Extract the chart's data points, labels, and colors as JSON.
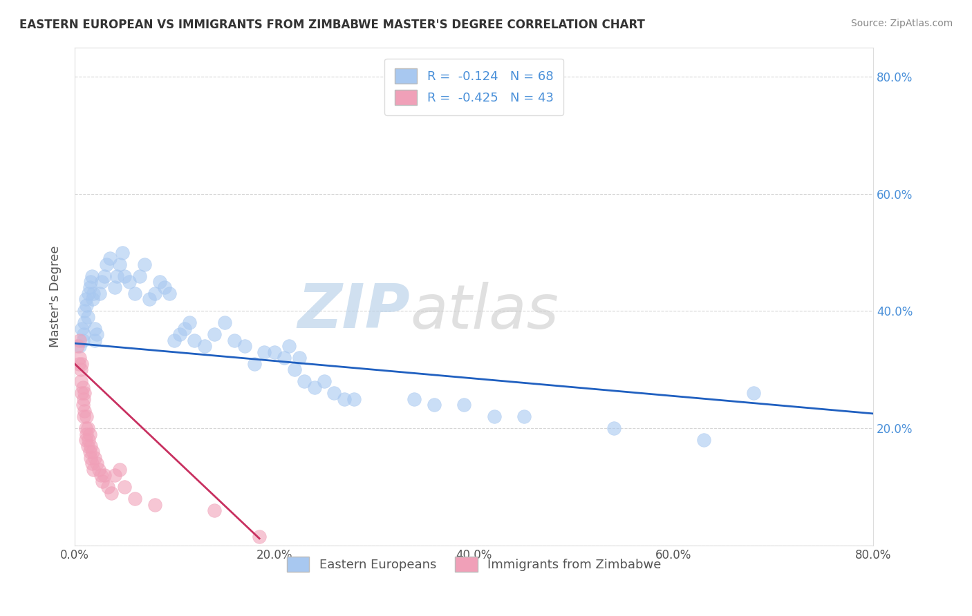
{
  "title": "EASTERN EUROPEAN VS IMMIGRANTS FROM ZIMBABWE MASTER'S DEGREE CORRELATION CHART",
  "source": "Source: ZipAtlas.com",
  "xlabel": "",
  "ylabel": "Master's Degree",
  "xlim": [
    0.0,
    0.8
  ],
  "ylim": [
    0.0,
    0.85
  ],
  "x_ticks": [
    0.0,
    0.2,
    0.4,
    0.6,
    0.8
  ],
  "x_tick_labels": [
    "0.0%",
    "20.0%",
    "40.0%",
    "60.0%",
    "80.0%"
  ],
  "y_ticks": [
    0.0,
    0.2,
    0.4,
    0.6,
    0.8
  ],
  "right_y_tick_labels": [
    "",
    "20.0%",
    "40.0%",
    "60.0%",
    "80.0%"
  ],
  "legend_labels": [
    "Eastern Europeans",
    "Immigrants from Zimbabwe"
  ],
  "blue_R": -0.124,
  "blue_N": 68,
  "pink_R": -0.425,
  "pink_N": 43,
  "blue_color": "#A8C8F0",
  "pink_color": "#F0A0B8",
  "blue_line_color": "#2060C0",
  "pink_line_color": "#C83060",
  "watermark_zip": "ZIP",
  "watermark_atlas": "atlas",
  "blue_points_x": [
    0.005,
    0.007,
    0.008,
    0.009,
    0.01,
    0.01,
    0.011,
    0.012,
    0.013,
    0.014,
    0.015,
    0.016,
    0.017,
    0.018,
    0.019,
    0.02,
    0.02,
    0.022,
    0.025,
    0.027,
    0.03,
    0.032,
    0.035,
    0.04,
    0.042,
    0.045,
    0.048,
    0.05,
    0.055,
    0.06,
    0.065,
    0.07,
    0.075,
    0.08,
    0.085,
    0.09,
    0.095,
    0.1,
    0.105,
    0.11,
    0.115,
    0.12,
    0.13,
    0.14,
    0.15,
    0.16,
    0.17,
    0.18,
    0.19,
    0.2,
    0.21,
    0.215,
    0.22,
    0.225,
    0.23,
    0.24,
    0.25,
    0.26,
    0.27,
    0.28,
    0.34,
    0.36,
    0.39,
    0.42,
    0.45,
    0.54,
    0.63,
    0.68
  ],
  "blue_points_y": [
    0.34,
    0.37,
    0.35,
    0.36,
    0.38,
    0.4,
    0.42,
    0.41,
    0.39,
    0.43,
    0.44,
    0.45,
    0.46,
    0.42,
    0.43,
    0.35,
    0.37,
    0.36,
    0.43,
    0.45,
    0.46,
    0.48,
    0.49,
    0.44,
    0.46,
    0.48,
    0.5,
    0.46,
    0.45,
    0.43,
    0.46,
    0.48,
    0.42,
    0.43,
    0.45,
    0.44,
    0.43,
    0.35,
    0.36,
    0.37,
    0.38,
    0.35,
    0.34,
    0.36,
    0.38,
    0.35,
    0.34,
    0.31,
    0.33,
    0.33,
    0.32,
    0.34,
    0.3,
    0.32,
    0.28,
    0.27,
    0.28,
    0.26,
    0.25,
    0.25,
    0.25,
    0.24,
    0.24,
    0.22,
    0.22,
    0.2,
    0.18,
    0.26
  ],
  "pink_points_x": [
    0.003,
    0.004,
    0.005,
    0.005,
    0.006,
    0.006,
    0.007,
    0.007,
    0.008,
    0.008,
    0.009,
    0.009,
    0.01,
    0.01,
    0.011,
    0.011,
    0.012,
    0.012,
    0.013,
    0.013,
    0.014,
    0.015,
    0.015,
    0.016,
    0.016,
    0.017,
    0.018,
    0.019,
    0.02,
    0.022,
    0.024,
    0.026,
    0.028,
    0.03,
    0.033,
    0.037,
    0.04,
    0.045,
    0.05,
    0.06,
    0.08,
    0.14,
    0.185
  ],
  "pink_points_y": [
    0.34,
    0.31,
    0.32,
    0.35,
    0.3,
    0.28,
    0.31,
    0.26,
    0.27,
    0.24,
    0.25,
    0.22,
    0.23,
    0.26,
    0.2,
    0.18,
    0.22,
    0.19,
    0.2,
    0.17,
    0.18,
    0.16,
    0.19,
    0.15,
    0.17,
    0.14,
    0.16,
    0.13,
    0.15,
    0.14,
    0.13,
    0.12,
    0.11,
    0.12,
    0.1,
    0.09,
    0.12,
    0.13,
    0.1,
    0.08,
    0.07,
    0.06,
    0.015
  ],
  "blue_line_x": [
    0.0,
    0.8
  ],
  "blue_line_y": [
    0.345,
    0.225
  ],
  "pink_line_x": [
    0.0,
    0.185
  ],
  "pink_line_y": [
    0.31,
    0.012
  ]
}
